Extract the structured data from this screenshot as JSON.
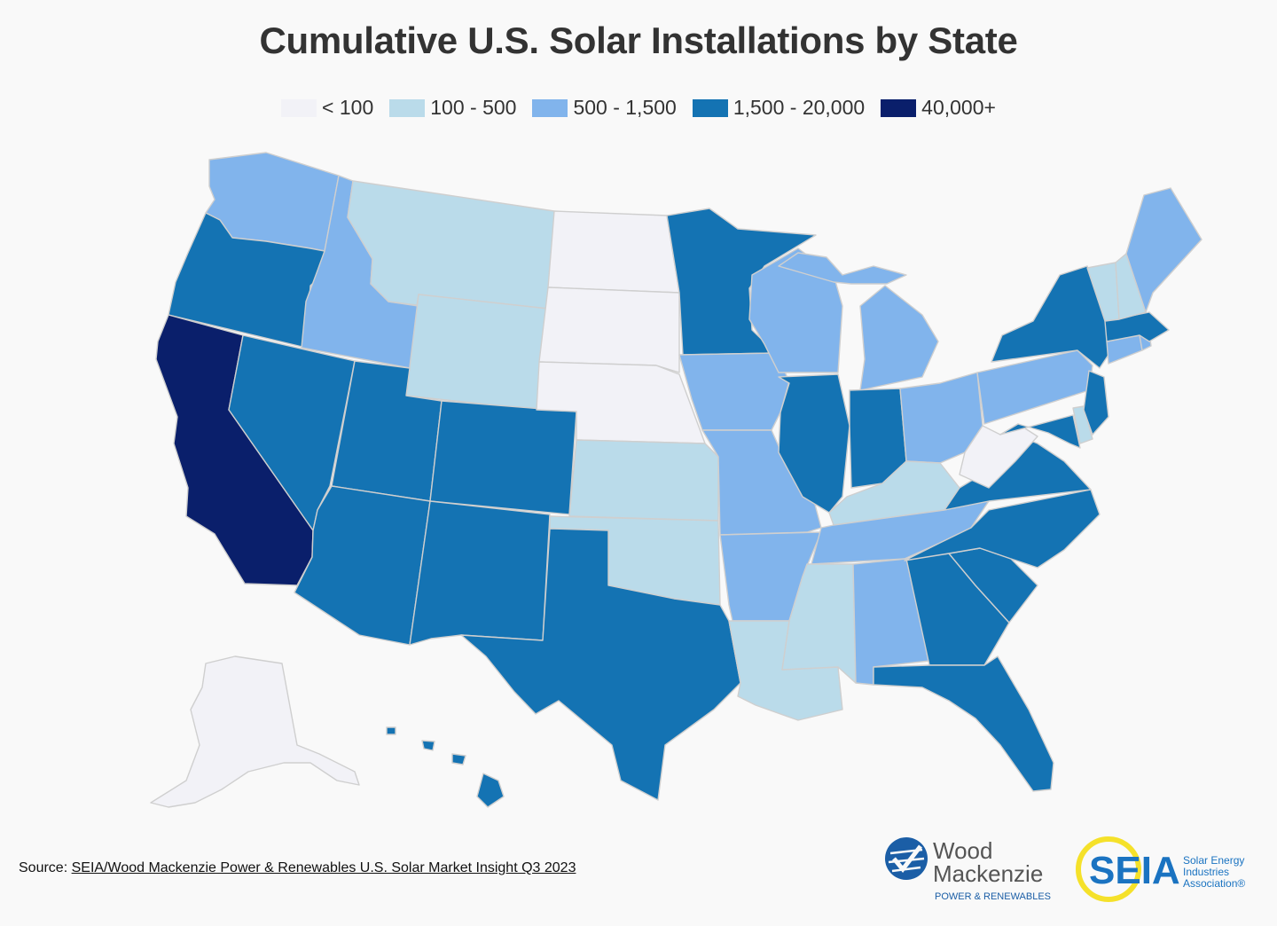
{
  "title": "Cumulative U.S. Solar Installations by State",
  "legend": [
    {
      "label": "< 100",
      "color": "#f2f2f7"
    },
    {
      "label": "100 - 500",
      "color": "#badbea"
    },
    {
      "label": "500 - 1,500",
      "color": "#81b4ec"
    },
    {
      "label": "1,500 - 20,000",
      "color": "#1473b3"
    },
    {
      "label": "40,000+",
      "color": "#0a1f6b"
    }
  ],
  "states_by_bin": {
    "< 100": [
      "North Dakota",
      "South Dakota",
      "Nebraska",
      "West Virginia",
      "Alaska"
    ],
    "100 - 500": [
      "Montana",
      "Wyoming",
      "Kansas",
      "Oklahoma",
      "Louisiana",
      "Mississippi",
      "Kentucky",
      "Vermont",
      "New Hampshire",
      "Delaware"
    ],
    "500 - 1,500": [
      "Washington",
      "Idaho",
      "Iowa",
      "Missouri",
      "Arkansas",
      "Wisconsin",
      "Michigan",
      "Ohio",
      "Pennsylvania",
      "Tennessee",
      "Alabama",
      "Maine",
      "Connecticut",
      "Rhode Island"
    ],
    "1,500 - 20,000": [
      "Oregon",
      "Nevada",
      "Utah",
      "Colorado",
      "Arizona",
      "New Mexico",
      "Texas",
      "Minnesota",
      "Illinois",
      "Indiana",
      "Georgia",
      "Florida",
      "South Carolina",
      "North Carolina",
      "Virginia",
      "Maryland",
      "New Jersey",
      "New York",
      "Massachusetts",
      "Hawaii"
    ],
    "40,000+": [
      "California"
    ]
  },
  "source": {
    "prefix": "Source: ",
    "link_text": "SEIA/Wood Mackenzie Power & Renewables U.S. Solar Market Insight Q3 2023"
  },
  "logos": {
    "wood_mackenzie": {
      "line1": "Wood",
      "line2": "Mackenzie",
      "tagline": "POWER & RENEWABLES"
    },
    "seia": {
      "mark": "SEIA",
      "line1": "Solar Energy",
      "line2": "Industries",
      "line3": "Association®"
    }
  },
  "colors": {
    "border": "#cfcfcf",
    "background": "#f9f9f9"
  }
}
